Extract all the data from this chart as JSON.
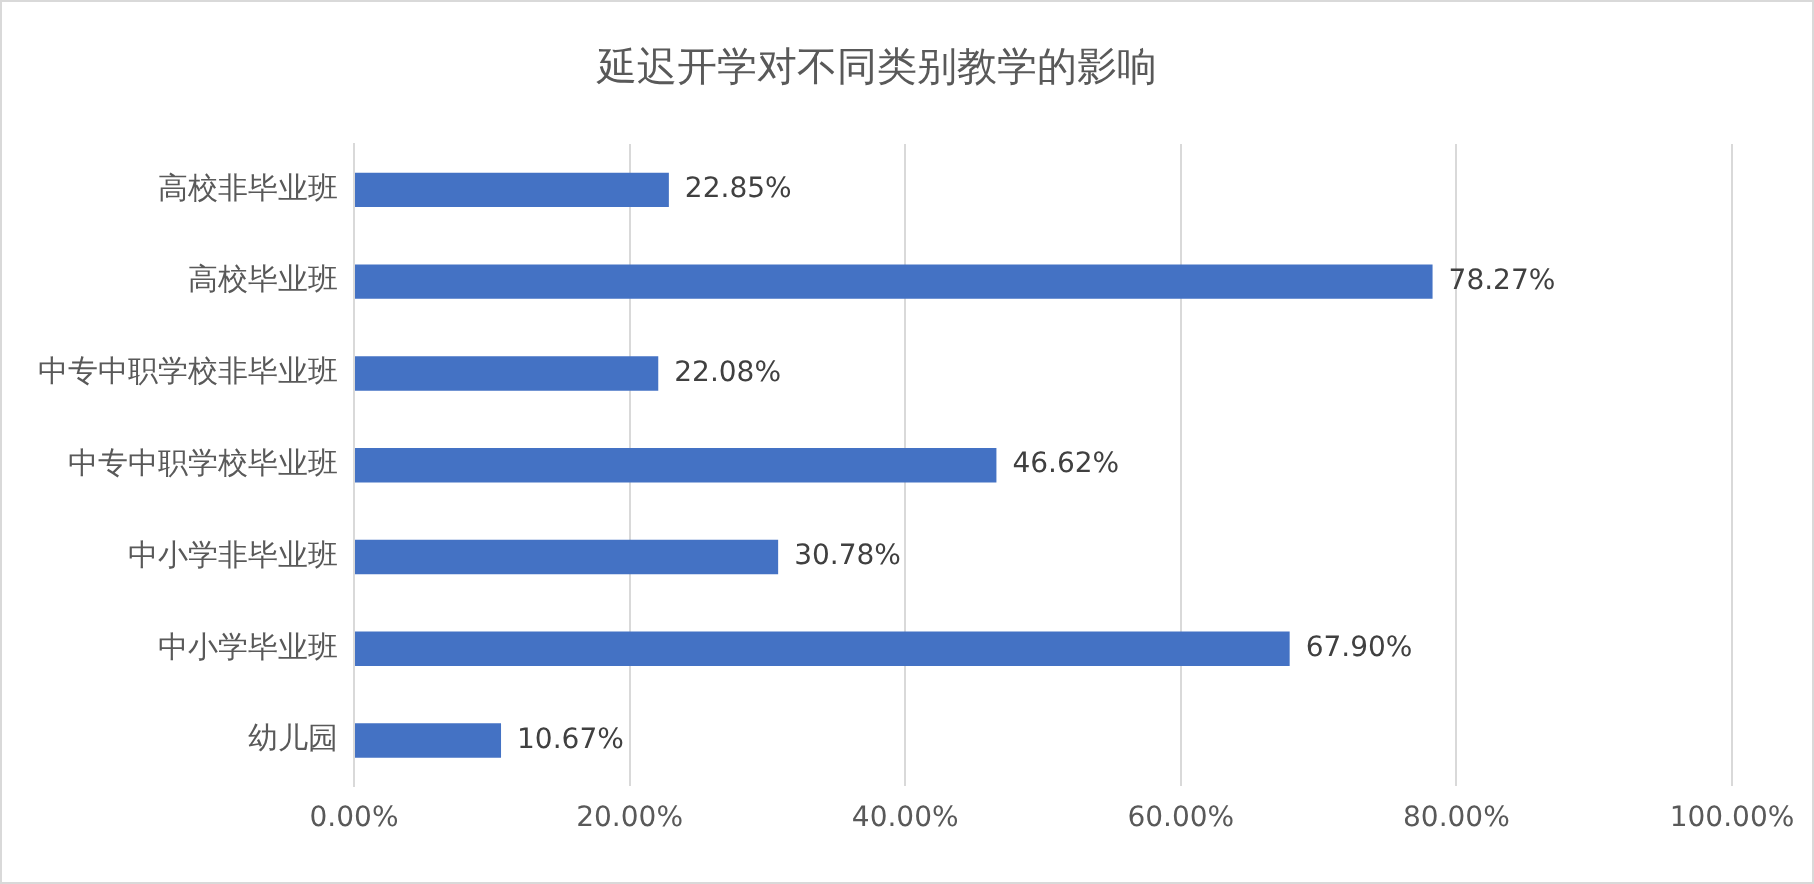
{
  "chart_data": {
    "type": "bar",
    "orientation": "horizontal",
    "title": "延迟开学对不同类别教学的影响",
    "categories": [
      "高校非毕业班",
      "高校毕业班",
      "中专中职学校非毕业班",
      "中专中职学校毕业班",
      "中小学非毕业班",
      "中小学毕业班",
      "幼儿园"
    ],
    "values": [
      22.85,
      78.27,
      22.08,
      46.62,
      30.78,
      67.9,
      10.67
    ],
    "value_labels": [
      "22.85%",
      "78.27%",
      "22.08%",
      "46.62%",
      "30.78%",
      "67.90%",
      "10.67%"
    ],
    "color": "#4472c4",
    "xlim": [
      0,
      100
    ],
    "xticks": [
      {
        "value": 0,
        "label": "0.00%"
      },
      {
        "value": 20,
        "label": "20.00%"
      },
      {
        "value": 40,
        "label": "40.00%"
      },
      {
        "value": 60,
        "label": "60.00%"
      },
      {
        "value": 80,
        "label": "80.00%"
      },
      {
        "value": 100,
        "label": "100.00%"
      }
    ],
    "grid": "x"
  }
}
